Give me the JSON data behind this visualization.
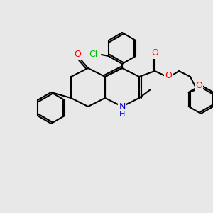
{
  "bg_color": "#e8e8e8",
  "bond_color": "#000000",
  "bond_lw": 1.5,
  "atom_colors": {
    "N": "#0000cc",
    "O": "#ff0000",
    "Cl": "#00bb00",
    "C": "#000000",
    "H": "#000000"
  },
  "font_size": 8,
  "fig_bg": "#e8e8e8"
}
